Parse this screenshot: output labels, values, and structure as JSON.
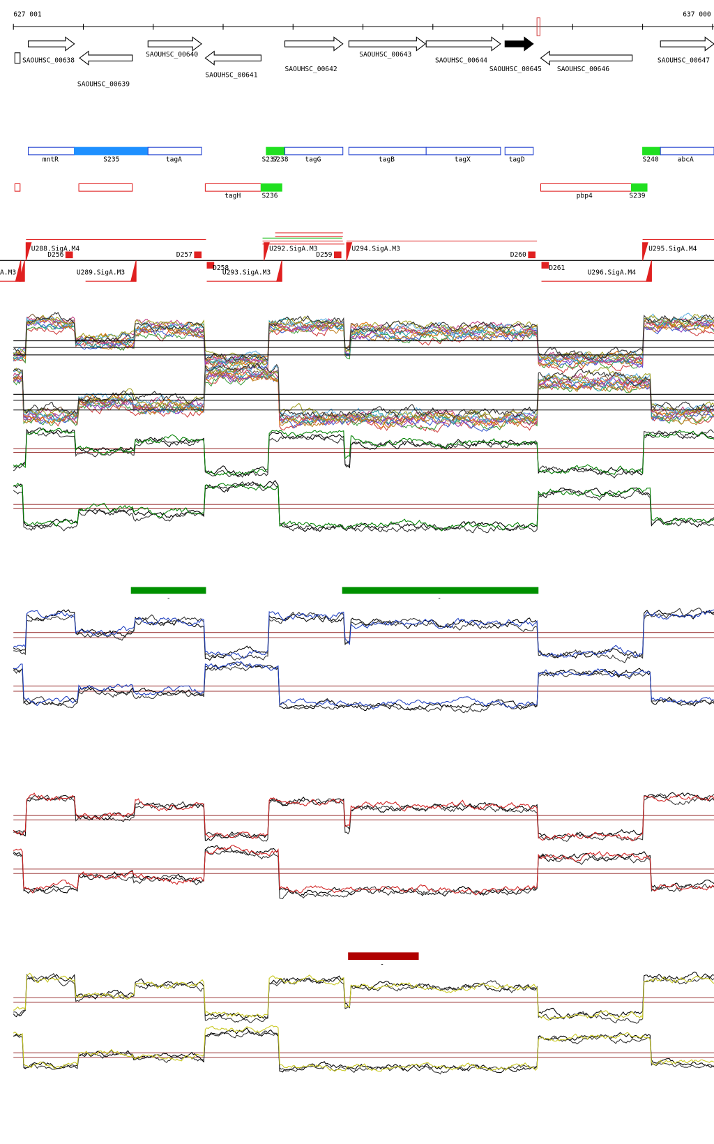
{
  "ruler": {
    "start": "627 001",
    "end": "637 000"
  },
  "genes": [
    "SAOUHSC_00638",
    "SAOUHSC_00639",
    "SAOUHSC_00640",
    "SAOUHSC_00641",
    "SAOUHSC_00642",
    "SAOUHSC_00643",
    "SAOUHSC_00644",
    "SAOUHSC_00645",
    "SAOUHSC_00646",
    "SAOUHSC_00647"
  ],
  "features_row1": [
    "mntR",
    "S235",
    "tagA",
    "S237",
    "S238",
    "tagG",
    "tagB",
    "tagX",
    "tagD",
    "S240",
    "abcA"
  ],
  "features_row2": [
    "tagH",
    "S236",
    "pbp4",
    "S239"
  ],
  "sites": [
    "U288.SigA.M4",
    "D256",
    "D257",
    "D258",
    "U293.SigA.M3",
    "U289.SigA.M3",
    "A.M3",
    "U292.SigA.M3",
    "D259",
    "U294.SigA.M3",
    "D260",
    "D261",
    "U296.SigA.M4",
    "U295.SigA.M4"
  ],
  "marks": [
    "-",
    "-",
    "-"
  ]
}
